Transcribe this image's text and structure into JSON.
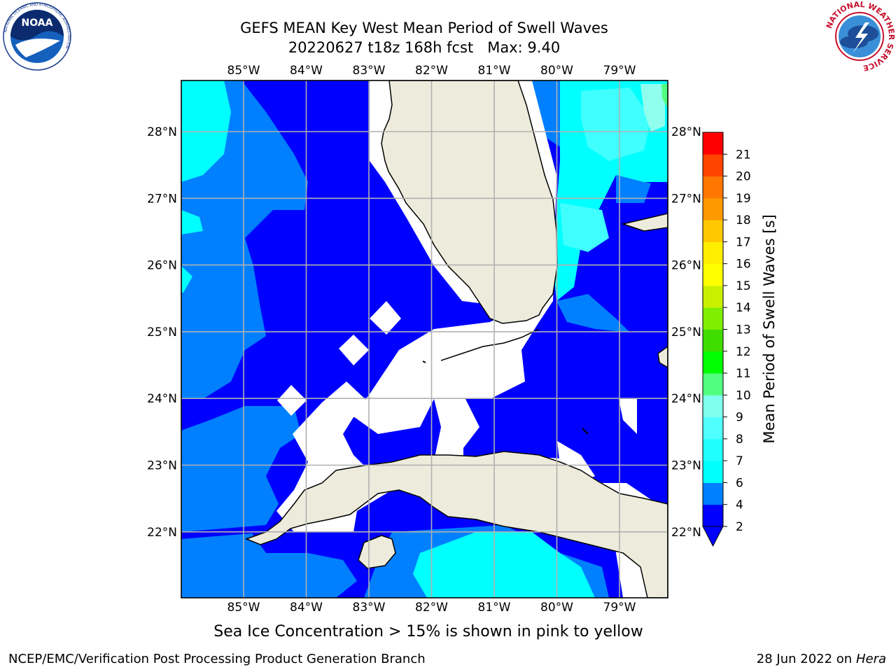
{
  "header": {
    "title_line1": "GEFS MEAN Key West Mean Period of Swell Waves",
    "title_line2": "20220627 t18z 168h fcst",
    "max_label": "Max: 9.40"
  },
  "logos": {
    "noaa_text": "NOAA",
    "noaa_ring_text": "NATIONAL OCEANIC AND ATMOSPHERIC ADMINISTRATION",
    "noaa_ring_bottom": "U.S. DEPARTMENT OF COMMERCE",
    "nws_ring_text": "NATIONAL WEATHER SERVICE"
  },
  "map": {
    "lon_labels": [
      "85°W",
      "84°W",
      "83°W",
      "82°W",
      "81°W",
      "80°W",
      "79°W"
    ],
    "lat_labels": [
      "28°N",
      "27°N",
      "26°N",
      "25°N",
      "24°N",
      "23°N",
      "22°N"
    ]
  },
  "colorbar": {
    "label": "Mean Period of Swell Waves [s]",
    "ticks": [
      "2",
      "4",
      "6",
      "7",
      "8",
      "9",
      "10",
      "11",
      "12",
      "13",
      "14",
      "15",
      "16",
      "17",
      "18",
      "19",
      "20",
      "21"
    ],
    "colors": [
      "#0000ff",
      "#0080ff",
      "#00ffff",
      "#20ffff",
      "#50ffff",
      "#80ffee",
      "#50ff80",
      "#00ff00",
      "#40dd00",
      "#80ee00",
      "#c8f000",
      "#ffff00",
      "#ffee00",
      "#ffc800",
      "#ff9900",
      "#ff7700",
      "#ff4400",
      "#ff0000"
    ]
  },
  "note": "Sea Ice Concentration > 15% is shown in pink to yellow",
  "footer": {
    "left": "NCEP/EMC/Verification Post Processing Product Generation Branch",
    "date": "28 Jun 2022 on",
    "machine": "Hera"
  }
}
